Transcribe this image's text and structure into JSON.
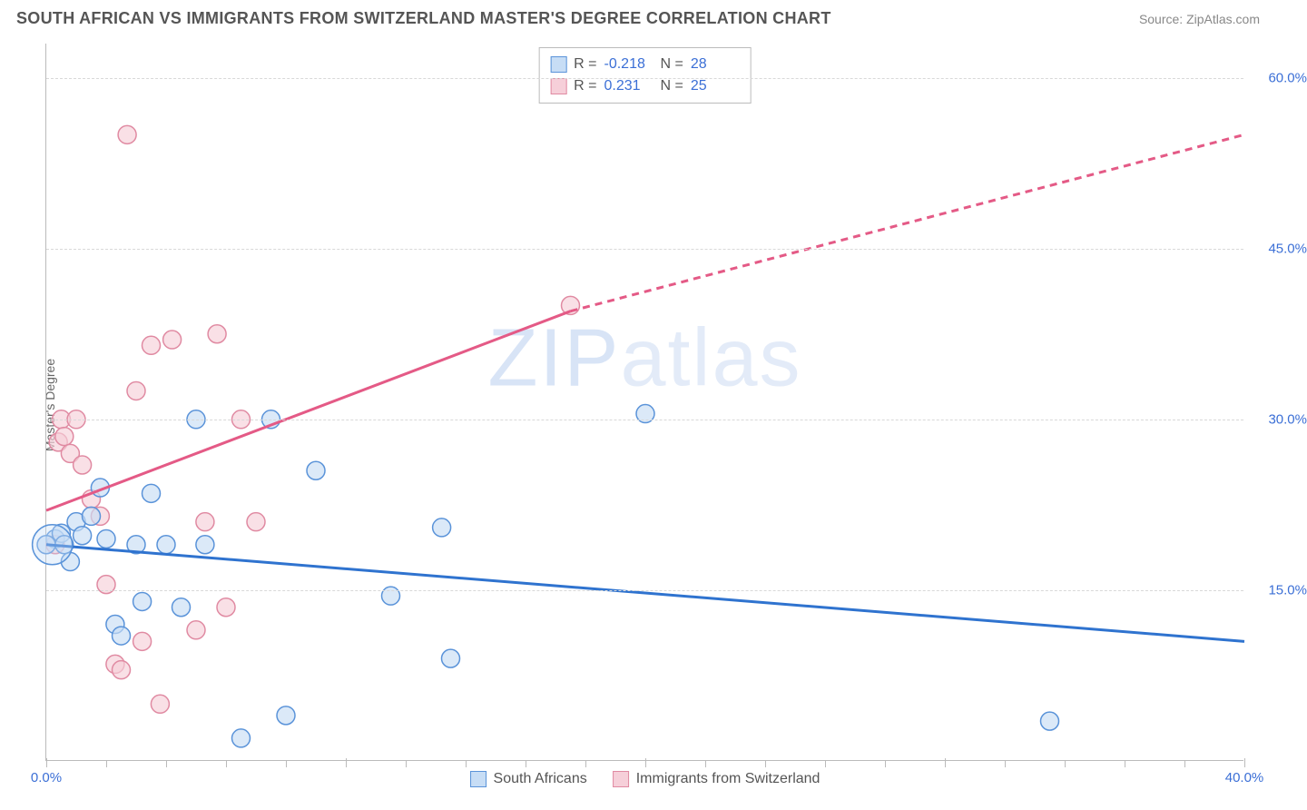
{
  "header": {
    "title": "SOUTH AFRICAN VS IMMIGRANTS FROM SWITZERLAND MASTER'S DEGREE CORRELATION CHART",
    "source": "Source: ZipAtlas.com"
  },
  "chart": {
    "type": "scatter",
    "ylabel": "Master's Degree",
    "background_color": "#ffffff",
    "grid_color": "#d8d8d8",
    "axis_color": "#bbbbbb",
    "tick_label_color": "#3b6fd6",
    "xlim": [
      0,
      40
    ],
    "ylim": [
      0,
      63
    ],
    "yticks": [
      15,
      30,
      45,
      60
    ],
    "ytick_labels": [
      "15.0%",
      "30.0%",
      "45.0%",
      "60.0%"
    ],
    "xticks": [
      0,
      10,
      20,
      30,
      40
    ],
    "xtick_labels": [
      "0.0%",
      "",
      "",
      "",
      "40.0%"
    ],
    "xtick_minor": [
      2,
      4,
      6,
      8,
      12,
      14,
      16,
      18,
      22,
      24,
      26,
      28,
      32,
      34,
      36,
      38
    ],
    "watermark": "ZIPatlas",
    "series": {
      "blue": {
        "label": "South Africans",
        "fill": "#c7ddf5",
        "stroke": "#5a93d9",
        "fill_opacity": 0.65,
        "r": 10,
        "points": [
          [
            0.3,
            19.5
          ],
          [
            0.5,
            20.0
          ],
          [
            0.6,
            19.0
          ],
          [
            0.8,
            17.5
          ],
          [
            1.0,
            21.0
          ],
          [
            1.2,
            19.8
          ],
          [
            1.5,
            21.5
          ],
          [
            1.8,
            24.0
          ],
          [
            2.0,
            19.5
          ],
          [
            2.3,
            12.0
          ],
          [
            2.5,
            11.0
          ],
          [
            3.0,
            19.0
          ],
          [
            3.2,
            14.0
          ],
          [
            3.5,
            23.5
          ],
          [
            4.0,
            19.0
          ],
          [
            4.5,
            13.5
          ],
          [
            5.0,
            30.0
          ],
          [
            5.3,
            19.0
          ],
          [
            6.5,
            2.0
          ],
          [
            7.5,
            30.0
          ],
          [
            8.0,
            4.0
          ],
          [
            9.0,
            25.5
          ],
          [
            11.5,
            14.5
          ],
          [
            13.2,
            20.5
          ],
          [
            13.5,
            9.0
          ],
          [
            20.0,
            30.5
          ],
          [
            33.5,
            3.5
          ],
          [
            0.0,
            19.0
          ]
        ],
        "trend": {
          "x1": 0,
          "y1": 19.0,
          "x2": 40,
          "y2": 10.5,
          "color": "#2f73cf",
          "width": 3
        }
      },
      "pink": {
        "label": "Immigrants from Switzerland",
        "fill": "#f6cfd9",
        "stroke": "#e08aa2",
        "fill_opacity": 0.65,
        "r": 10,
        "points": [
          [
            0.4,
            28.0
          ],
          [
            0.5,
            30.0
          ],
          [
            0.6,
            28.5
          ],
          [
            0.8,
            27.0
          ],
          [
            1.0,
            30.0
          ],
          [
            1.2,
            26.0
          ],
          [
            1.5,
            23.0
          ],
          [
            1.8,
            21.5
          ],
          [
            2.0,
            15.5
          ],
          [
            2.3,
            8.5
          ],
          [
            2.5,
            8.0
          ],
          [
            2.7,
            55.0
          ],
          [
            3.0,
            32.5
          ],
          [
            3.2,
            10.5
          ],
          [
            3.5,
            36.5
          ],
          [
            3.8,
            5.0
          ],
          [
            4.2,
            37.0
          ],
          [
            5.0,
            11.5
          ],
          [
            5.3,
            21.0
          ],
          [
            5.7,
            37.5
          ],
          [
            6.0,
            13.5
          ],
          [
            6.5,
            30.0
          ],
          [
            7.0,
            21.0
          ],
          [
            0.3,
            19.0
          ],
          [
            17.5,
            40.0
          ]
        ],
        "trend": {
          "x1": 0,
          "y1": 22.0,
          "x2": 17.5,
          "y2": 39.5,
          "x3": 40,
          "y3": 55.0,
          "color": "#e45a86",
          "width": 3
        }
      }
    },
    "stats": [
      {
        "swatch_fill": "#c7ddf5",
        "swatch_stroke": "#5a93d9",
        "r_label": "R =",
        "r_val": "-0.218",
        "n_label": "N =",
        "n_val": "28"
      },
      {
        "swatch_fill": "#f6cfd9",
        "swatch_stroke": "#e08aa2",
        "r_label": "R =",
        "r_val": "0.231",
        "n_label": "N =",
        "n_val": "25"
      }
    ]
  }
}
